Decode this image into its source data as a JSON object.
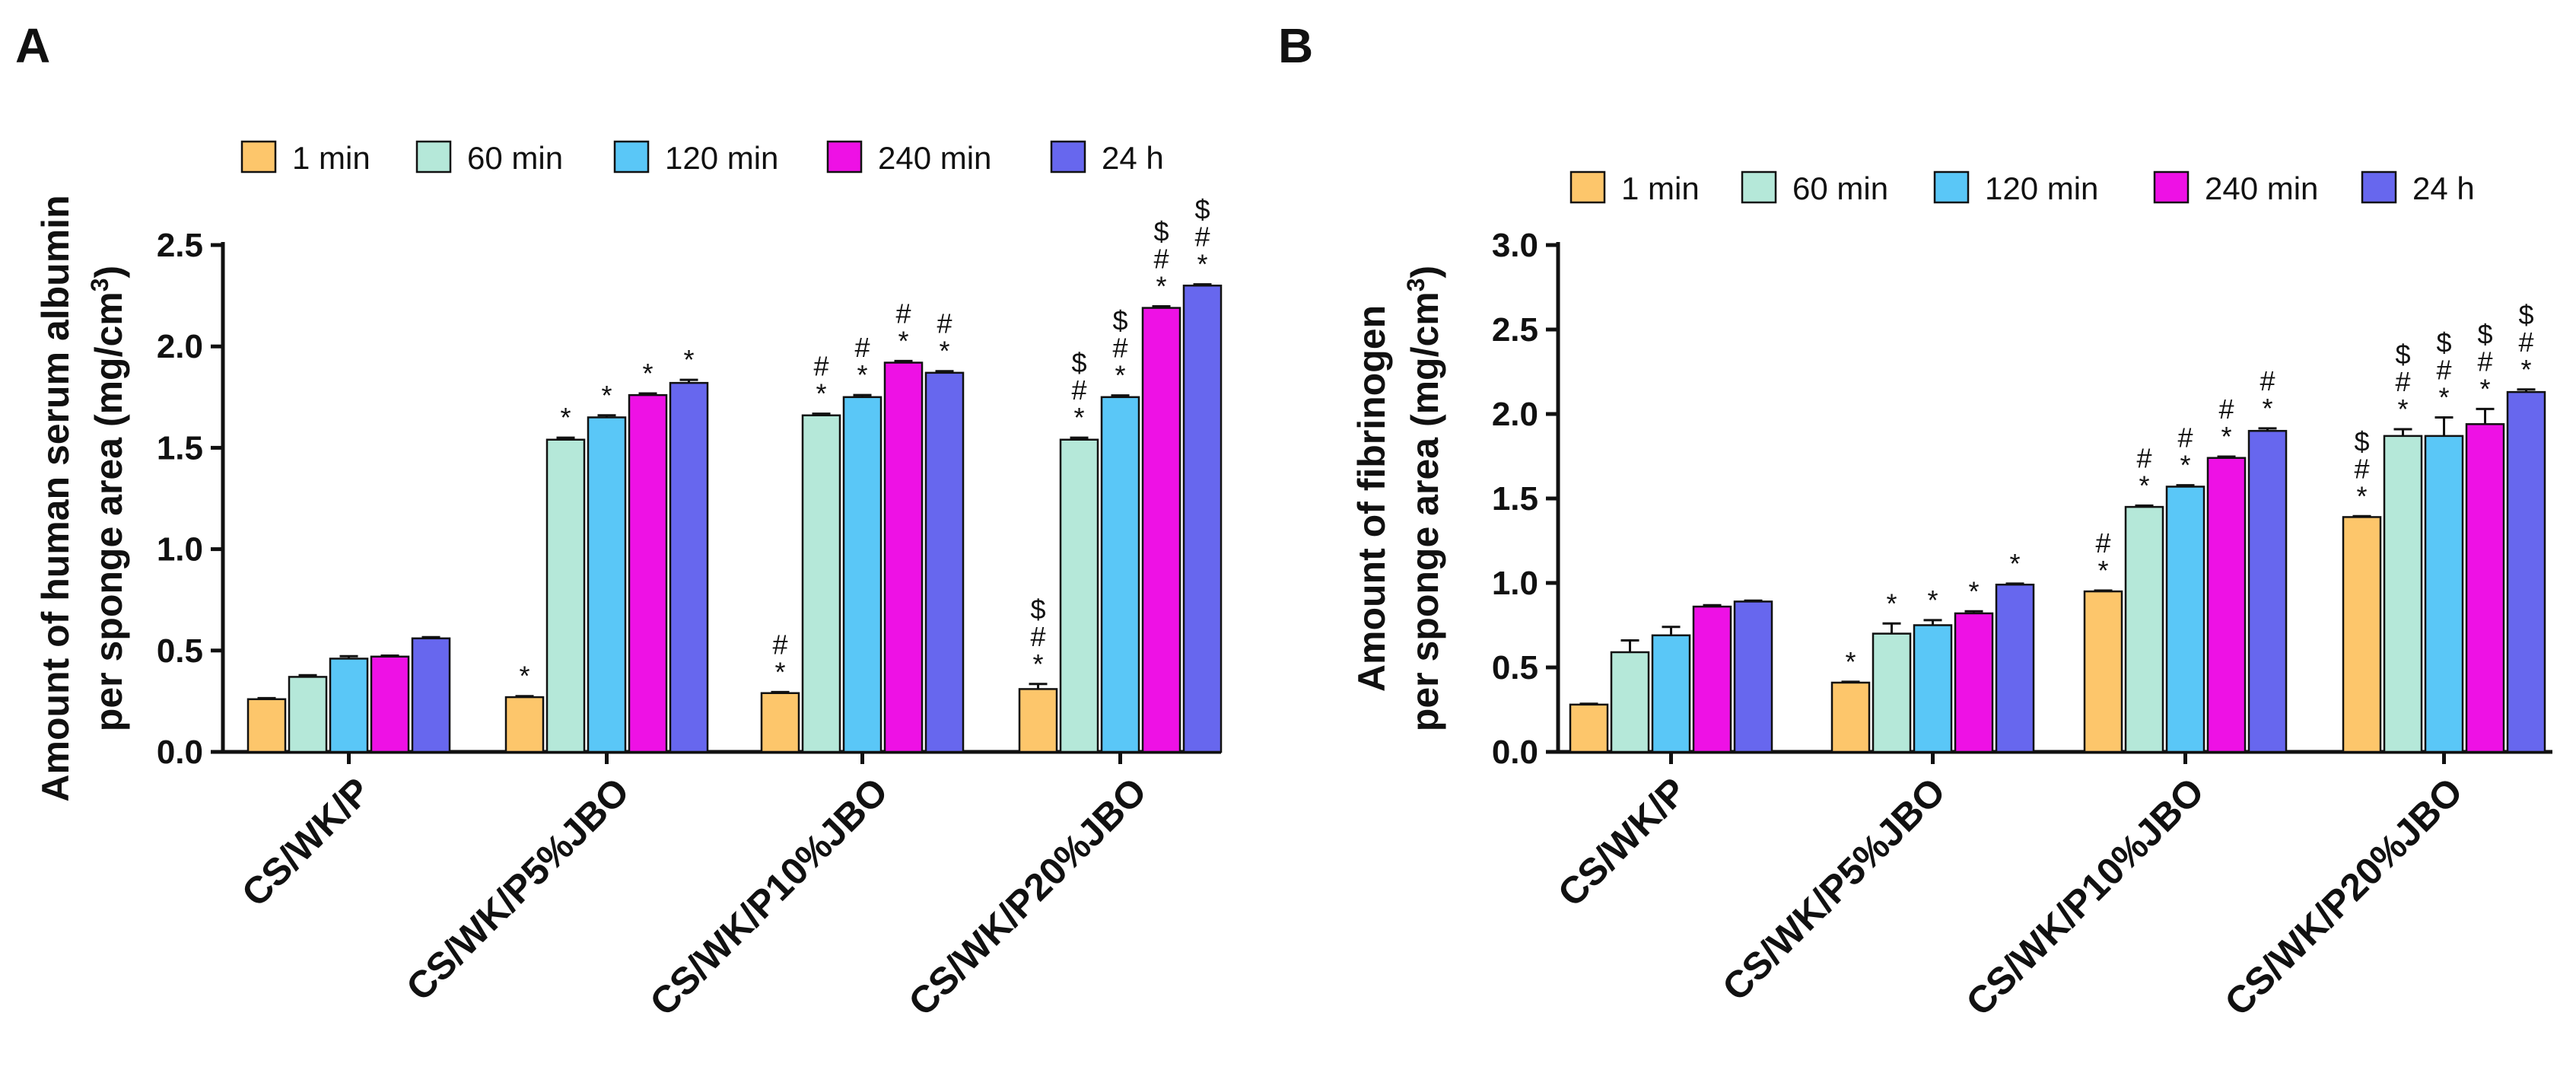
{
  "chart_data": [
    {
      "panel": "A",
      "type": "bar",
      "ylabel_line1": "Amount of human serum albumin",
      "ylabel_line2": "per sponge area (mg/cm",
      "ylabel_sup": "3",
      "ylabel_end": ")",
      "ylim": [
        0,
        2.5
      ],
      "yticks": [
        "0.0",
        "0.5",
        "1.0",
        "1.5",
        "2.0",
        "2.5"
      ],
      "categories": [
        "CS/WK/P",
        "CS/WK/P5%JBO",
        "CS/WK/P10%JBO",
        "CS/WK/P20%JBO"
      ],
      "series": [
        {
          "name": "1 min",
          "color": "#FDC66B",
          "values": [
            0.26,
            0.27,
            0.29,
            0.31
          ],
          "errors": [
            0.005,
            0.005,
            0.005,
            0.025
          ]
        },
        {
          "name": "60 min",
          "color": "#B5E8D9",
          "values": [
            0.37,
            1.54,
            1.66,
            1.54
          ],
          "errors": [
            0.008,
            0.01,
            0.008,
            0.01
          ]
        },
        {
          "name": "120 min",
          "color": "#5AC7F7",
          "values": [
            0.46,
            1.65,
            1.75,
            1.75
          ],
          "errors": [
            0.012,
            0.01,
            0.01,
            0.008
          ]
        },
        {
          "name": "240 min",
          "color": "#EE11E5",
          "values": [
            0.47,
            1.76,
            1.92,
            2.19
          ],
          "errors": [
            0.005,
            0.008,
            0.008,
            0.008
          ]
        },
        {
          "name": "24 h",
          "color": "#6767EE",
          "values": [
            0.56,
            1.82,
            1.87,
            2.3
          ],
          "errors": [
            0.006,
            0.015,
            0.008,
            0.006
          ]
        }
      ],
      "annotations": [
        [
          [],
          [],
          [],
          [],
          []
        ],
        [
          [
            "*"
          ],
          [
            "*"
          ],
          [
            "*"
          ],
          [
            "*"
          ],
          [
            "*"
          ]
        ],
        [
          [
            "*",
            "#"
          ],
          [
            "*",
            "#"
          ],
          [
            "*",
            "#"
          ],
          [
            "*",
            "#"
          ],
          [
            "*",
            "#"
          ]
        ],
        [
          [
            "*",
            "#",
            "$"
          ],
          [
            "*",
            "#",
            "$"
          ],
          [
            "*",
            "#",
            "$"
          ],
          [
            "*",
            "#",
            "$"
          ],
          [
            "*",
            "#",
            "$"
          ]
        ]
      ]
    },
    {
      "panel": "B",
      "type": "bar",
      "ylabel_line1": "Amount of fibrinogen",
      "ylabel_line2": "per sponge area (mg/cm",
      "ylabel_sup": "3",
      "ylabel_end": ")",
      "ylim": [
        0,
        3.0
      ],
      "yticks": [
        "0.0",
        "0.5",
        "1.0",
        "1.5",
        "2.0",
        "2.5",
        "3.0"
      ],
      "categories": [
        "CS/WK/P",
        "CS/WK/P5%JBO",
        "CS/WK/P10%JBO",
        "CS/WK/P20%JBO"
      ],
      "series": [
        {
          "name": "1 min",
          "color": "#FDC66B",
          "values": [
            0.28,
            0.41,
            0.95,
            1.39
          ],
          "errors": [
            0.005,
            0.005,
            0.005,
            0.005
          ]
        },
        {
          "name": "60 min",
          "color": "#B5E8D9",
          "values": [
            0.59,
            0.7,
            1.45,
            1.87
          ],
          "errors": [
            0.07,
            0.06,
            0.008,
            0.04
          ]
        },
        {
          "name": "120 min",
          "color": "#5AC7F7",
          "values": [
            0.69,
            0.75,
            1.57,
            1.87
          ],
          "errors": [
            0.05,
            0.03,
            0.008,
            0.11
          ]
        },
        {
          "name": "240 min",
          "color": "#EE11E5",
          "values": [
            0.86,
            0.82,
            1.74,
            1.94
          ],
          "errors": [
            0.008,
            0.012,
            0.008,
            0.09
          ]
        },
        {
          "name": "24 h",
          "color": "#6767EE",
          "values": [
            0.89,
            0.99,
            1.9,
            2.13
          ],
          "errors": [
            0.005,
            0.006,
            0.015,
            0.015
          ]
        }
      ],
      "annotations": [
        [
          [],
          [],
          [],
          [],
          []
        ],
        [
          [
            "*"
          ],
          [
            "*"
          ],
          [
            "*"
          ],
          [
            "*"
          ],
          [
            "*"
          ]
        ],
        [
          [
            "*",
            "#"
          ],
          [
            "*",
            "#"
          ],
          [
            "*",
            "#"
          ],
          [
            "*",
            "#"
          ],
          [
            "*",
            "#"
          ]
        ],
        [
          [
            "*",
            "#",
            "$"
          ],
          [
            "*",
            "#",
            "$"
          ],
          [
            "*",
            "#",
            "$"
          ],
          [
            "*",
            "#",
            "$"
          ],
          [
            "*",
            "#",
            "$"
          ]
        ]
      ]
    }
  ]
}
